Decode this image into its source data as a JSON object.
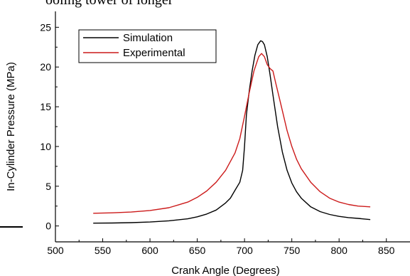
{
  "page": {
    "top_text": "ooling tower of longer"
  },
  "chart_data": {
    "type": "line",
    "title": "",
    "xlabel": "Crank Angle (Degrees)",
    "ylabel": "In-Cylinder Pressure (MPa)",
    "xlim": [
      500,
      875
    ],
    "ylim": [
      -2,
      27
    ],
    "xticks": [
      500,
      550,
      600,
      650,
      700,
      750,
      800,
      850
    ],
    "yticks": [
      0,
      5,
      10,
      15,
      20,
      25
    ],
    "legend": "top-left",
    "grid": false,
    "series": [
      {
        "name": "Simulation",
        "color": "#000000",
        "x": [
          540,
          560,
          580,
          600,
          620,
          640,
          650,
          660,
          670,
          680,
          685,
          690,
          695,
          698,
          700,
          702,
          705,
          708,
          711,
          714,
          717,
          719,
          721,
          724,
          727,
          730,
          735,
          740,
          745,
          750,
          755,
          760,
          770,
          780,
          790,
          800,
          810,
          820,
          833
        ],
        "y": [
          0.35,
          0.37,
          0.42,
          0.5,
          0.65,
          0.9,
          1.15,
          1.5,
          2.0,
          2.9,
          3.5,
          4.5,
          5.5,
          7.0,
          10.0,
          14.0,
          17.0,
          19.5,
          21.5,
          22.8,
          23.3,
          23.2,
          22.8,
          21.3,
          19.0,
          16.5,
          12.5,
          9.3,
          7.0,
          5.4,
          4.3,
          3.5,
          2.4,
          1.8,
          1.45,
          1.2,
          1.05,
          0.95,
          0.8
        ]
      },
      {
        "name": "Experimental",
        "color": "#cc1a1a",
        "x": [
          540,
          560,
          580,
          600,
          620,
          640,
          650,
          660,
          670,
          680,
          690,
          695,
          700,
          705,
          710,
          715,
          718,
          721,
          724,
          727,
          730,
          733,
          737,
          740,
          745,
          750,
          755,
          760,
          770,
          780,
          790,
          800,
          810,
          820,
          833
        ],
        "y": [
          1.6,
          1.65,
          1.75,
          1.95,
          2.3,
          3.0,
          3.6,
          4.4,
          5.5,
          7.0,
          9.2,
          11.0,
          13.8,
          16.8,
          19.5,
          21.3,
          21.7,
          21.3,
          20.3,
          19.8,
          19.5,
          18.0,
          16.0,
          14.5,
          12.0,
          10.0,
          8.4,
          7.2,
          5.5,
          4.3,
          3.5,
          3.0,
          2.7,
          2.5,
          2.4
        ]
      }
    ]
  }
}
